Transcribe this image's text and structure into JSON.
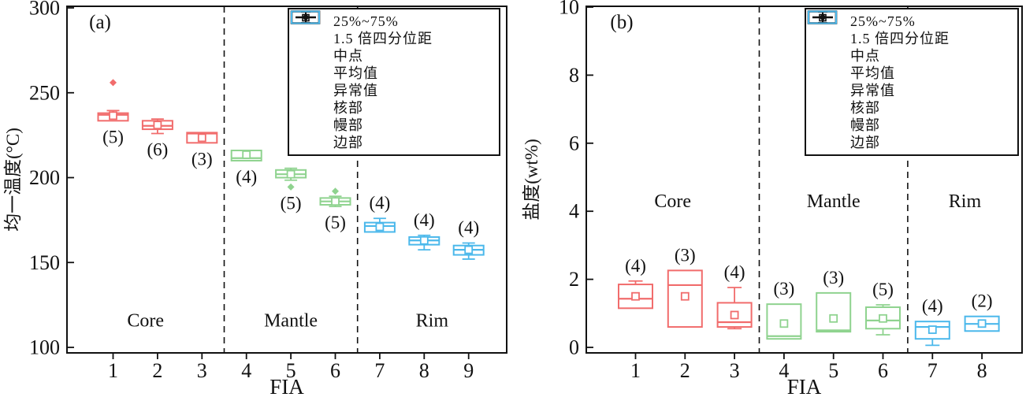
{
  "colors": {
    "core": "#F16C6C",
    "mantle": "#8FD38F",
    "rim": "#4BB8EB",
    "axis": "#111111"
  },
  "legend": {
    "items": [
      {
        "symbol": "iqr-box",
        "label": "25%~75%"
      },
      {
        "symbol": "whisker",
        "label": "1.5 倍四分位距"
      },
      {
        "symbol": "median-line",
        "label": "中点"
      },
      {
        "symbol": "mean-square",
        "label": "平均值"
      },
      {
        "symbol": "outlier-diamond",
        "label": "异常值"
      },
      {
        "symbol": "core-box",
        "label": "核部"
      },
      {
        "symbol": "mantle-box",
        "label": "幔部"
      },
      {
        "symbol": "rim-box",
        "label": "边部"
      }
    ]
  },
  "chart_data": [
    {
      "id": "a",
      "type": "box",
      "panel_label": "(a)",
      "xlabel": "FIA",
      "ylabel": "均一温度(°C)",
      "ylim": [
        100,
        300
      ],
      "yticks": [
        100,
        150,
        200,
        250,
        300
      ],
      "categories": [
        "1",
        "2",
        "3",
        "4",
        "5",
        "6",
        "7",
        "8",
        "9"
      ],
      "dividers": [
        3.5,
        6.5
      ],
      "zone_labels": [
        "Core",
        "Mantle",
        "Rim"
      ],
      "zone_label_value": 116,
      "boxes": [
        {
          "fia": 1,
          "group": "core",
          "n": 5,
          "q1": 233.5,
          "median": 237,
          "q3": 238,
          "mean": 236.5,
          "whisker_low": 233.5,
          "whisker_high": 239.5,
          "outliers": [
            256
          ],
          "count_pos": "below"
        },
        {
          "fia": 2,
          "group": "core",
          "n": 6,
          "q1": 228.5,
          "median": 230.5,
          "q3": 233.5,
          "mean": 231,
          "whisker_low": 226,
          "whisker_high": 234.5,
          "outliers": [],
          "count_pos": "below"
        },
        {
          "fia": 3,
          "group": "core",
          "n": 3,
          "q1": 220.5,
          "median": 226,
          "q3": 226.5,
          "mean": 223.5,
          "whisker_low": 220.5,
          "whisker_high": 226.5,
          "outliers": [],
          "count_pos": "below"
        },
        {
          "fia": 4,
          "group": "mantle",
          "n": 4,
          "q1": 210,
          "median": 211.5,
          "q3": 216,
          "mean": 213.5,
          "whisker_low": 210,
          "whisker_high": 216,
          "outliers": [],
          "count_pos": "below"
        },
        {
          "fia": 5,
          "group": "mantle",
          "n": 5,
          "q1": 200,
          "median": 202,
          "q3": 204.5,
          "mean": 202,
          "whisker_low": 198.5,
          "whisker_high": 205.5,
          "outliers": [
            194.5
          ],
          "count_pos": "below"
        },
        {
          "fia": 6,
          "group": "mantle",
          "n": 5,
          "q1": 184,
          "median": 186,
          "q3": 188,
          "mean": 186,
          "whisker_low": 183,
          "whisker_high": 189,
          "outliers": [
            192
          ],
          "count_pos": "below"
        },
        {
          "fia": 7,
          "group": "rim",
          "n": 4,
          "q1": 168,
          "median": 171.5,
          "q3": 173.5,
          "mean": 171,
          "whisker_low": 168,
          "whisker_high": 176,
          "outliers": [],
          "count_pos": "above"
        },
        {
          "fia": 8,
          "group": "rim",
          "n": 4,
          "q1": 160.5,
          "median": 163,
          "q3": 165,
          "mean": 163,
          "whisker_low": 157.5,
          "whisker_high": 166,
          "outliers": [],
          "count_pos": "above"
        },
        {
          "fia": 9,
          "group": "rim",
          "n": 4,
          "q1": 154.5,
          "median": 157.5,
          "q3": 160,
          "mean": 157.5,
          "whisker_low": 152,
          "whisker_high": 161.5,
          "outliers": [],
          "count_pos": "above"
        }
      ]
    },
    {
      "id": "b",
      "type": "box",
      "panel_label": "(b)",
      "xlabel": "FIA",
      "ylabel": "盐度(wt%)",
      "ylim": [
        0,
        10
      ],
      "yticks": [
        0,
        2,
        4,
        6,
        8,
        10
      ],
      "categories": [
        "1",
        "2",
        "3",
        "4",
        "5",
        "6",
        "7",
        "8"
      ],
      "dividers": [
        3.5,
        6.5
      ],
      "zone_labels": [
        "Core",
        "Mantle",
        "Rim"
      ],
      "zone_label_value": 4.3,
      "boxes": [
        {
          "fia": 1,
          "group": "core",
          "n": 4,
          "q1": 1.15,
          "median": 1.43,
          "q3": 1.85,
          "mean": 1.5,
          "whisker_low": 1.15,
          "whisker_high": 1.95,
          "outliers": [],
          "count_pos": "above"
        },
        {
          "fia": 2,
          "group": "core",
          "n": 3,
          "q1": 0.6,
          "median": 1.83,
          "q3": 2.26,
          "mean": 1.5,
          "whisker_low": 0.6,
          "whisker_high": 2.26,
          "outliers": [],
          "count_pos": "above"
        },
        {
          "fia": 3,
          "group": "core",
          "n": 4,
          "q1": 0.6,
          "median": 0.74,
          "q3": 1.31,
          "mean": 0.95,
          "whisker_low": 0.55,
          "whisker_high": 1.76,
          "outliers": [],
          "count_pos": "above"
        },
        {
          "fia": 4,
          "group": "mantle",
          "n": 3,
          "q1": 0.25,
          "median": 0.33,
          "q3": 1.27,
          "mean": 0.7,
          "whisker_low": 0.25,
          "whisker_high": 1.27,
          "outliers": [],
          "count_pos": "above"
        },
        {
          "fia": 5,
          "group": "mantle",
          "n": 3,
          "q1": 0.46,
          "median": 0.5,
          "q3": 1.6,
          "mean": 0.85,
          "whisker_low": 0.46,
          "whisker_high": 1.6,
          "outliers": [],
          "count_pos": "above"
        },
        {
          "fia": 6,
          "group": "mantle",
          "n": 5,
          "q1": 0.55,
          "median": 0.79,
          "q3": 1.18,
          "mean": 0.85,
          "whisker_low": 0.37,
          "whisker_high": 1.25,
          "outliers": [],
          "count_pos": "above"
        },
        {
          "fia": 7,
          "group": "rim",
          "n": 4,
          "q1": 0.25,
          "median": 0.6,
          "q3": 0.76,
          "mean": 0.52,
          "whisker_low": 0.06,
          "whisker_high": 0.76,
          "outliers": [],
          "count_pos": "above"
        },
        {
          "fia": 8,
          "group": "rim",
          "n": 2,
          "q1": 0.48,
          "median": 0.69,
          "q3": 0.91,
          "mean": 0.7,
          "whisker_low": 0.48,
          "whisker_high": 0.91,
          "outliers": [],
          "count_pos": "above"
        }
      ]
    }
  ]
}
